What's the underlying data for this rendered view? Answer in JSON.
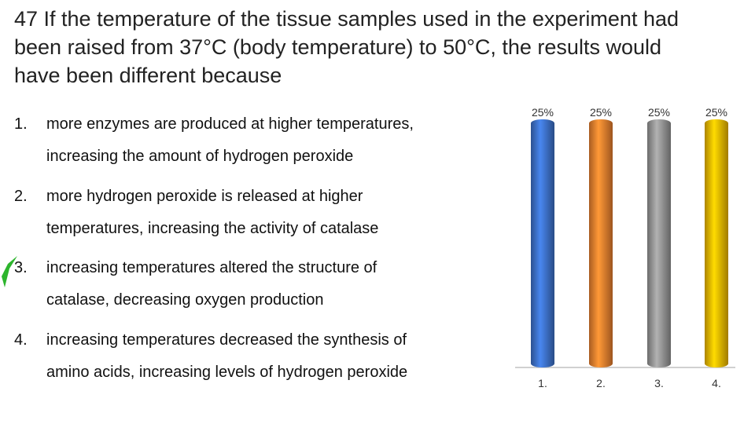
{
  "question": {
    "lines": [
      "47 If the temperature of the tissue samples used in the experiment had",
      "been raised from 37°C (body temperature) to 50°C, the results would",
      "have been different because"
    ]
  },
  "options": [
    {
      "number": "1.",
      "lines": [
        "more enzymes are produced at higher temperatures,",
        "increasing the amount of hydrogen peroxide"
      ]
    },
    {
      "number": "2.",
      "lines": [
        "more hydrogen peroxide is released at higher",
        "temperatures, increasing the activity of catalase"
      ]
    },
    {
      "number": "3.",
      "lines": [
        "increasing temperatures altered the structure of",
        "catalase, decreasing oxygen production"
      ]
    },
    {
      "number": "4.",
      "lines": [
        "increasing temperatures decreased the synthesis of",
        "amino acids, increasing levels of hydrogen peroxide"
      ]
    }
  ],
  "chart_data": {
    "type": "bar",
    "categories": [
      "1.",
      "2.",
      "3.",
      "4."
    ],
    "values": [
      25,
      25,
      25,
      25
    ],
    "value_labels": [
      "25%",
      "25%",
      "25%",
      "25%"
    ],
    "colors": [
      "#3a6cc0",
      "#e07a2c",
      "#8e8e8e",
      "#e6b000"
    ]
  }
}
